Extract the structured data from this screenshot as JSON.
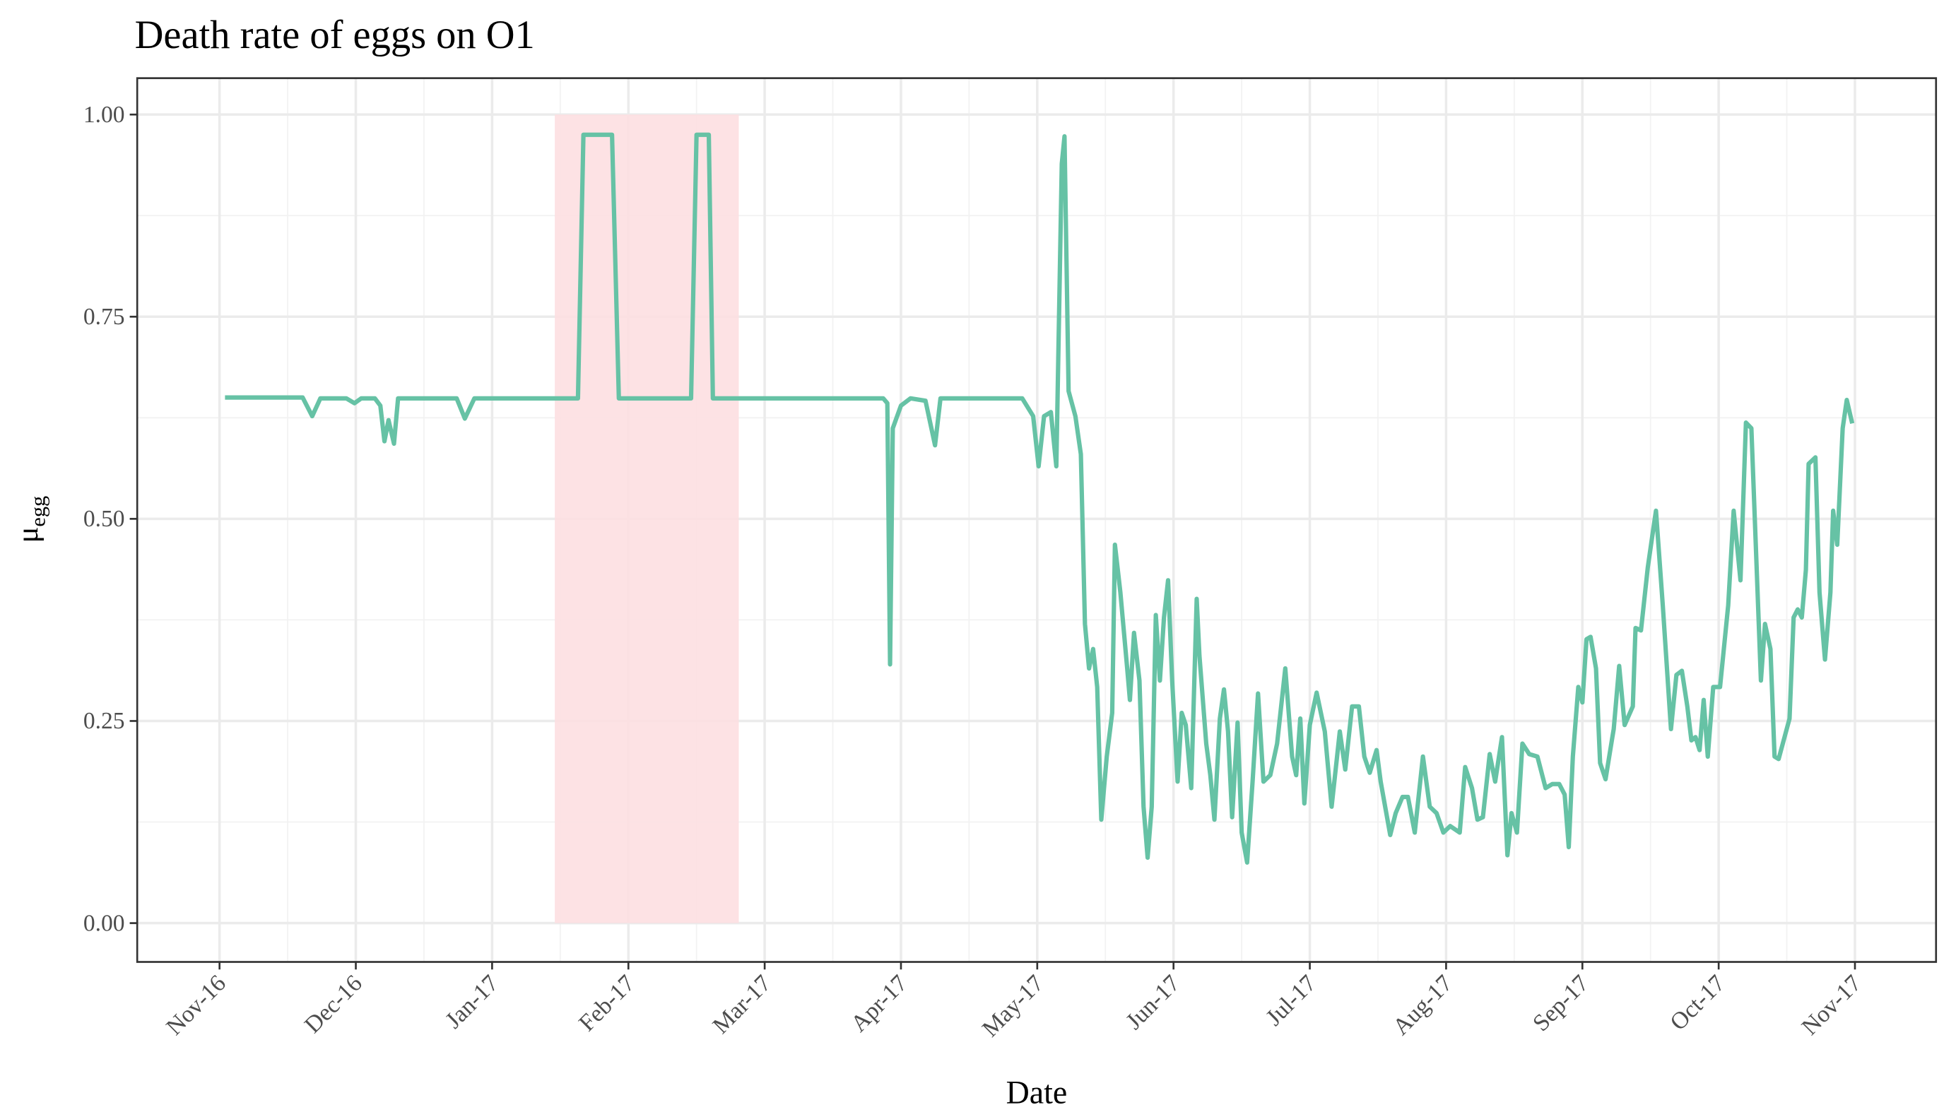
{
  "chart_data": {
    "type": "line",
    "title": "Death rate of eggs on O1",
    "x_label": "Date",
    "y_label": "μ",
    "y_label_subscript": "egg",
    "color": "#66c2a5",
    "grid": true,
    "shaded_region": {
      "x": [
        2.46,
        3.81
      ],
      "y": [
        0,
        1
      ],
      "color": "#fddfe1"
    },
    "xlim": [
      -0.604,
      12.595
    ],
    "ylim": [
      -0.048,
      1.045
    ],
    "xticks": [
      {
        "value": 0,
        "label": "Nov-16"
      },
      {
        "value": 1,
        "label": "Dec-16"
      },
      {
        "value": 2,
        "label": "Jan-17"
      },
      {
        "value": 3,
        "label": "Feb-17"
      },
      {
        "value": 4,
        "label": "Mar-17"
      },
      {
        "value": 5,
        "label": "Apr-17"
      },
      {
        "value": 6,
        "label": "May-17"
      },
      {
        "value": 7,
        "label": "Jun-17"
      },
      {
        "value": 8,
        "label": "Jul-17"
      },
      {
        "value": 9,
        "label": "Aug-17"
      },
      {
        "value": 10,
        "label": "Sep-17"
      },
      {
        "value": 11,
        "label": "Oct-17"
      },
      {
        "value": 12,
        "label": "Nov-17"
      }
    ],
    "yticks": [
      {
        "value": 0,
        "label": "0.00"
      },
      {
        "value": 0.25,
        "label": "0.25"
      },
      {
        "value": 0.5,
        "label": "0.50"
      },
      {
        "value": 0.75,
        "label": "0.75"
      },
      {
        "value": 1,
        "label": "1.00"
      }
    ],
    "x": [
      0.04,
      0.61,
      0.68,
      0.74,
      0.93,
      0.99,
      1.04,
      1.14,
      1.18,
      1.21,
      1.24,
      1.28,
      1.31,
      1.74,
      1.8,
      1.87,
      2.63,
      2.67,
      2.88,
      2.93,
      3.46,
      3.5,
      3.59,
      3.62,
      4.87,
      4.9,
      4.92,
      4.94,
      5.0,
      5.07,
      5.18,
      5.25,
      5.29,
      5.89,
      5.97,
      6.01,
      6.05,
      6.1,
      6.14,
      6.18,
      6.2,
      6.23,
      6.28,
      6.32,
      6.35,
      6.38,
      6.41,
      6.44,
      6.47,
      6.51,
      6.55,
      6.57,
      6.61,
      6.66,
      6.68,
      6.71,
      6.75,
      6.78,
      6.81,
      6.84,
      6.87,
      6.9,
      6.93,
      6.96,
      6.99,
      7.03,
      7.06,
      7.09,
      7.13,
      7.17,
      7.19,
      7.24,
      7.27,
      7.3,
      7.34,
      7.37,
      7.4,
      7.43,
      7.47,
      7.5,
      7.54,
      7.58,
      7.62,
      7.66,
      7.71,
      7.76,
      7.82,
      7.87,
      7.9,
      7.93,
      7.96,
      8.0,
      8.05,
      8.11,
      8.16,
      8.22,
      8.26,
      8.31,
      8.36,
      8.4,
      8.44,
      8.49,
      8.52,
      8.59,
      8.63,
      8.68,
      8.72,
      8.77,
      8.83,
      8.88,
      8.93,
      8.98,
      9.03,
      9.1,
      9.14,
      9.19,
      9.23,
      9.27,
      9.32,
      9.36,
      9.41,
      9.45,
      9.48,
      9.52,
      9.56,
      9.61,
      9.67,
      9.73,
      9.78,
      9.83,
      9.87,
      9.9,
      9.93,
      9.97,
      10.0,
      10.03,
      10.06,
      10.1,
      10.13,
      10.17,
      10.22,
      10.23,
      10.27,
      10.31,
      10.37,
      10.39,
      10.43,
      10.48,
      10.52,
      10.54,
      10.59,
      10.65,
      10.69,
      10.73,
      10.77,
      10.8,
      10.83,
      10.86,
      10.89,
      10.92,
      10.96,
      11.01,
      11.07,
      11.11,
      11.16,
      11.2,
      11.24,
      11.31,
      11.34,
      11.38,
      11.41,
      11.44,
      11.52,
      11.55,
      11.58,
      11.61,
      11.64,
      11.66,
      11.71,
      11.74,
      11.78,
      11.82,
      11.84,
      11.87,
      11.91,
      11.94,
      11.98
    ],
    "values": [
      0.65,
      0.65,
      0.627,
      0.649,
      0.649,
      0.643,
      0.649,
      0.649,
      0.64,
      0.596,
      0.622,
      0.593,
      0.649,
      0.649,
      0.624,
      0.649,
      0.649,
      0.975,
      0.975,
      0.649,
      0.649,
      0.975,
      0.975,
      0.649,
      0.649,
      0.643,
      0.32,
      0.612,
      0.64,
      0.649,
      0.646,
      0.591,
      0.649,
      0.649,
      0.627,
      0.565,
      0.627,
      0.632,
      0.565,
      0.939,
      0.973,
      0.658,
      0.627,
      0.58,
      0.37,
      0.315,
      0.339,
      0.292,
      0.128,
      0.206,
      0.26,
      0.468,
      0.409,
      0.315,
      0.276,
      0.359,
      0.3,
      0.144,
      0.081,
      0.144,
      0.381,
      0.3,
      0.378,
      0.424,
      0.3,
      0.175,
      0.26,
      0.245,
      0.167,
      0.401,
      0.331,
      0.222,
      0.183,
      0.128,
      0.253,
      0.289,
      0.237,
      0.131,
      0.248,
      0.112,
      0.075,
      0.175,
      0.284,
      0.175,
      0.183,
      0.222,
      0.315,
      0.206,
      0.183,
      0.253,
      0.148,
      0.245,
      0.285,
      0.237,
      0.144,
      0.237,
      0.19,
      0.268,
      0.268,
      0.206,
      0.186,
      0.214,
      0.175,
      0.109,
      0.136,
      0.156,
      0.156,
      0.112,
      0.206,
      0.144,
      0.136,
      0.112,
      0.12,
      0.112,
      0.193,
      0.167,
      0.128,
      0.131,
      0.209,
      0.175,
      0.23,
      0.084,
      0.136,
      0.112,
      0.222,
      0.209,
      0.206,
      0.167,
      0.172,
      0.172,
      0.159,
      0.094,
      0.206,
      0.292,
      0.273,
      0.351,
      0.354,
      0.315,
      0.198,
      0.178,
      0.23,
      0.24,
      0.318,
      0.245,
      0.268,
      0.365,
      0.362,
      0.44,
      0.487,
      0.51,
      0.393,
      0.24,
      0.307,
      0.312,
      0.268,
      0.226,
      0.23,
      0.214,
      0.276,
      0.206,
      0.292,
      0.292,
      0.393,
      0.51,
      0.424,
      0.619,
      0.612,
      0.3,
      0.37,
      0.339,
      0.206,
      0.203,
      0.253,
      0.378,
      0.388,
      0.378,
      0.437,
      0.568,
      0.576,
      0.409,
      0.326,
      0.409,
      0.51,
      0.468,
      0.612,
      0.647,
      0.618
    ]
  }
}
